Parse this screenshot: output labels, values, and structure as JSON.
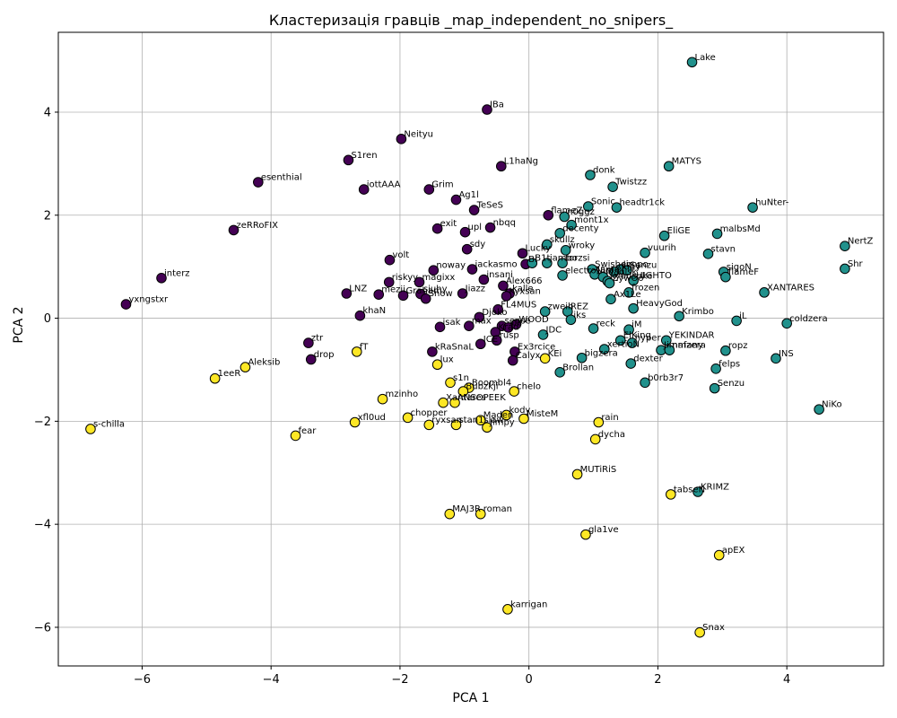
{
  "chart_data": {
    "type": "scatter",
    "title": "Кластеризація гравців _map_independent_no_snipers_",
    "xlabel": "PCA 1",
    "ylabel": "PCA 2",
    "xlim": [
      -7.3,
      5.5
    ],
    "ylim": [
      -6.75,
      5.55
    ],
    "xticks": [
      -6,
      -4,
      -2,
      0,
      2,
      4
    ],
    "yticks": [
      -6,
      -4,
      -2,
      0,
      2,
      4
    ],
    "grid": true,
    "cluster_colors": [
      "#440154",
      "#21918c",
      "#fde725"
    ],
    "points": [
      {
        "label": "IBa",
        "x": -0.65,
        "y": 4.05,
        "cluster": 0
      },
      {
        "label": "Neityu",
        "x": -1.98,
        "y": 3.48,
        "cluster": 0
      },
      {
        "label": "S1ren",
        "x": -2.8,
        "y": 3.07,
        "cluster": 0
      },
      {
        "label": "L1haNg",
        "x": -0.43,
        "y": 2.95,
        "cluster": 0
      },
      {
        "label": "esenthial",
        "x": -4.2,
        "y": 2.64,
        "cluster": 0
      },
      {
        "label": "iottAAA",
        "x": -2.56,
        "y": 2.5,
        "cluster": 0
      },
      {
        "label": "Grim",
        "x": -1.55,
        "y": 2.5,
        "cluster": 0
      },
      {
        "label": "Ag1l",
        "x": -1.13,
        "y": 2.3,
        "cluster": 0
      },
      {
        "label": "TeSeS",
        "x": -0.85,
        "y": 2.1,
        "cluster": 0
      },
      {
        "label": "flameZ",
        "x": 0.3,
        "y": 2.0,
        "cluster": 0
      },
      {
        "label": "zeRRoFIX",
        "x": -4.58,
        "y": 1.71,
        "cluster": 0
      },
      {
        "label": "exit",
        "x": -1.42,
        "y": 1.74,
        "cluster": 0
      },
      {
        "label": "upl",
        "x": -0.99,
        "y": 1.67,
        "cluster": 0
      },
      {
        "label": "nbqq",
        "x": -0.6,
        "y": 1.76,
        "cluster": 0
      },
      {
        "label": "sdy",
        "x": -0.96,
        "y": 1.34,
        "cluster": 0
      },
      {
        "label": "Lucky",
        "x": -0.1,
        "y": 1.26,
        "cluster": 0
      },
      {
        "label": "volt",
        "x": -2.16,
        "y": 1.13,
        "cluster": 0
      },
      {
        "label": "interz",
        "x": -5.7,
        "y": 0.78,
        "cluster": 0
      },
      {
        "label": "noway",
        "x": -1.48,
        "y": 0.93,
        "cluster": 0
      },
      {
        "label": "jackasmo",
        "x": -0.88,
        "y": 0.95,
        "cluster": 0
      },
      {
        "label": "Bi",
        "x": -0.05,
        "y": 1.05,
        "cluster": 0
      },
      {
        "label": "riskyy",
        "x": -2.17,
        "y": 0.7,
        "cluster": 0
      },
      {
        "label": "magixx",
        "x": -1.7,
        "y": 0.7,
        "cluster": 0
      },
      {
        "label": "insani",
        "x": -0.7,
        "y": 0.75,
        "cluster": 0
      },
      {
        "label": "Alex666",
        "x": -0.4,
        "y": 0.63,
        "cluster": 0
      },
      {
        "label": "LNZ",
        "x": -2.83,
        "y": 0.48,
        "cluster": 0
      },
      {
        "label": "mezii",
        "x": -2.33,
        "y": 0.46,
        "cluster": 0
      },
      {
        "label": "Graham",
        "x": -1.95,
        "y": 0.44,
        "cluster": 0
      },
      {
        "label": "siuhy",
        "x": -1.68,
        "y": 0.47,
        "cluster": 0
      },
      {
        "label": "Snow",
        "x": -1.6,
        "y": 0.38,
        "cluster": 0
      },
      {
        "label": "Jiazz",
        "x": -1.03,
        "y": 0.48,
        "cluster": 0
      },
      {
        "label": "kalle",
        "x": -0.3,
        "y": 0.48,
        "cluster": 0
      },
      {
        "label": "Kyxsan",
        "x": -0.35,
        "y": 0.43,
        "cluster": 0
      },
      {
        "label": "yxngstxr",
        "x": -6.25,
        "y": 0.27,
        "cluster": 0
      },
      {
        "label": "FL4MUS",
        "x": -0.48,
        "y": 0.17,
        "cluster": 0
      },
      {
        "label": "khaN",
        "x": -2.62,
        "y": 0.05,
        "cluster": 0
      },
      {
        "label": "Djoko",
        "x": -0.77,
        "y": 0.02,
        "cluster": 0
      },
      {
        "label": "isak",
        "x": -1.38,
        "y": -0.17,
        "cluster": 0
      },
      {
        "label": "max",
        "x": -0.93,
        "y": -0.15,
        "cluster": 0
      },
      {
        "label": "sense",
        "x": -0.42,
        "y": -0.15,
        "cluster": 0
      },
      {
        "label": "pe",
        "x": -0.32,
        "y": -0.18,
        "cluster": 0
      },
      {
        "label": "WOOD",
        "x": -0.2,
        "y": -0.12,
        "cluster": 0
      },
      {
        "label": "Krad",
        "x": -0.52,
        "y": -0.27,
        "cluster": 0
      },
      {
        "label": "rusp",
        "x": -0.5,
        "y": -0.43,
        "cluster": 0
      },
      {
        "label": "ztr",
        "x": -3.42,
        "y": -0.48,
        "cluster": 0
      },
      {
        "label": "ICE",
        "x": -0.75,
        "y": -0.5,
        "cluster": 0
      },
      {
        "label": "kRaSnaL",
        "x": -1.5,
        "y": -0.65,
        "cluster": 0
      },
      {
        "label": "Ex3rcice",
        "x": -0.22,
        "y": -0.65,
        "cluster": 0
      },
      {
        "label": "drop",
        "x": -3.38,
        "y": -0.8,
        "cluster": 0
      },
      {
        "label": "Calyx",
        "x": -0.25,
        "y": -0.82,
        "cluster": 0
      },
      {
        "label": "Lake",
        "x": 2.53,
        "y": 4.97,
        "cluster": 1
      },
      {
        "label": "MATYS",
        "x": 2.17,
        "y": 2.95,
        "cluster": 1
      },
      {
        "label": "donk",
        "x": 0.95,
        "y": 2.78,
        "cluster": 1
      },
      {
        "label": "Twistzz",
        "x": 1.3,
        "y": 2.55,
        "cluster": 1
      },
      {
        "label": "Sonic",
        "x": 0.92,
        "y": 2.17,
        "cluster": 1
      },
      {
        "label": "headtr1ck",
        "x": 1.36,
        "y": 2.15,
        "cluster": 1
      },
      {
        "label": "huNter-",
        "x": 3.47,
        "y": 2.15,
        "cluster": 1
      },
      {
        "label": "n0ggz",
        "x": 0.55,
        "y": 1.97,
        "cluster": 1
      },
      {
        "label": "mont1x",
        "x": 0.66,
        "y": 1.81,
        "cluster": 1
      },
      {
        "label": "decenty",
        "x": 0.48,
        "y": 1.65,
        "cluster": 1
      },
      {
        "label": "EliGE",
        "x": 2.1,
        "y": 1.6,
        "cluster": 1
      },
      {
        "label": "malbsMd",
        "x": 2.92,
        "y": 1.64,
        "cluster": 1
      },
      {
        "label": "NertZ",
        "x": 4.9,
        "y": 1.4,
        "cluster": 1
      },
      {
        "label": "skullz",
        "x": 0.28,
        "y": 1.43,
        "cluster": 1
      },
      {
        "label": "wroky",
        "x": 0.57,
        "y": 1.32,
        "cluster": 1
      },
      {
        "label": "vuurih",
        "x": 1.8,
        "y": 1.27,
        "cluster": 1
      },
      {
        "label": "stavn",
        "x": 2.78,
        "y": 1.25,
        "cluster": 1
      },
      {
        "label": "B1t",
        "x": 0.05,
        "y": 1.07,
        "cluster": 1
      },
      {
        "label": "jambo",
        "x": 0.28,
        "y": 1.07,
        "cluster": 1
      },
      {
        "label": "torzsi",
        "x": 0.52,
        "y": 1.07,
        "cluster": 1
      },
      {
        "label": "Shr",
        "x": 4.9,
        "y": 0.96,
        "cluster": 1
      },
      {
        "label": "Swisher",
        "x": 0.98,
        "y": 0.95,
        "cluster": 1
      },
      {
        "label": "Jimpo",
        "x": 1.42,
        "y": 0.95,
        "cluster": 1
      },
      {
        "label": "Senzu",
        "x": 1.52,
        "y": 0.93,
        "cluster": 1
      },
      {
        "label": "siuhy",
        "x": 1.32,
        "y": 0.9,
        "cluster": 1
      },
      {
        "label": "sigoN",
        "x": 3.02,
        "y": 0.9,
        "cluster": 1
      },
      {
        "label": "electroNic",
        "x": 0.52,
        "y": 0.83,
        "cluster": 1
      },
      {
        "label": "Jame",
        "x": 1.02,
        "y": 0.85,
        "cluster": 1
      },
      {
        "label": "Magisk",
        "x": 1.15,
        "y": 0.8,
        "cluster": 1
      },
      {
        "label": "flameF",
        "x": 3.05,
        "y": 0.8,
        "cluster": 1
      },
      {
        "label": "kyousuke",
        "x": 1.22,
        "y": 0.72,
        "cluster": 1
      },
      {
        "label": "HIGHTO",
        "x": 1.62,
        "y": 0.73,
        "cluster": 1
      },
      {
        "label": "ZywOo",
        "x": 1.25,
        "y": 0.68,
        "cluster": 1
      },
      {
        "label": "frozen",
        "x": 1.55,
        "y": 0.5,
        "cluster": 1
      },
      {
        "label": "XANTARES",
        "x": 3.65,
        "y": 0.5,
        "cluster": 1
      },
      {
        "label": "Ax1Le",
        "x": 1.27,
        "y": 0.37,
        "cluster": 1
      },
      {
        "label": "HeavyGod",
        "x": 1.62,
        "y": 0.19,
        "cluster": 1
      },
      {
        "label": "zweih",
        "x": 0.25,
        "y": 0.13,
        "cluster": 1
      },
      {
        "label": "REZ",
        "x": 0.6,
        "y": 0.13,
        "cluster": 1
      },
      {
        "label": "Krimbo",
        "x": 2.33,
        "y": 0.04,
        "cluster": 1
      },
      {
        "label": "iks",
        "x": 0.65,
        "y": -0.03,
        "cluster": 1
      },
      {
        "label": "iL",
        "x": 3.22,
        "y": -0.05,
        "cluster": 1
      },
      {
        "label": "coldzera",
        "x": 4.0,
        "y": -0.1,
        "cluster": 1
      },
      {
        "label": "reck",
        "x": 1.0,
        "y": -0.2,
        "cluster": 1
      },
      {
        "label": "iM",
        "x": 1.55,
        "y": -0.22,
        "cluster": 1
      },
      {
        "label": "JDC",
        "x": 0.22,
        "y": -0.32,
        "cluster": 1
      },
      {
        "label": "ElKing",
        "x": 1.42,
        "y": -0.43,
        "cluster": 1
      },
      {
        "label": "hyper",
        "x": 1.6,
        "y": -0.48,
        "cluster": 1
      },
      {
        "label": "YEKINDAR",
        "x": 2.13,
        "y": -0.43,
        "cluster": 1
      },
      {
        "label": "xertioN",
        "x": 1.17,
        "y": -0.6,
        "cluster": 1
      },
      {
        "label": "Jimmzera",
        "x": 2.05,
        "y": -0.62,
        "cluster": 1
      },
      {
        "label": "nafany",
        "x": 2.18,
        "y": -0.62,
        "cluster": 1
      },
      {
        "label": "ropz",
        "x": 3.05,
        "y": -0.63,
        "cluster": 1
      },
      {
        "label": "bigzera",
        "x": 0.82,
        "y": -0.77,
        "cluster": 1
      },
      {
        "label": "INS",
        "x": 3.83,
        "y": -0.78,
        "cluster": 1
      },
      {
        "label": "dexter",
        "x": 1.58,
        "y": -0.88,
        "cluster": 1
      },
      {
        "label": "felps",
        "x": 2.9,
        "y": -0.98,
        "cluster": 1
      },
      {
        "label": "Brollan",
        "x": 0.48,
        "y": -1.05,
        "cluster": 1
      },
      {
        "label": "b0rb3r7",
        "x": 1.8,
        "y": -1.25,
        "cluster": 1
      },
      {
        "label": "Senzu",
        "x": 2.88,
        "y": -1.36,
        "cluster": 1
      },
      {
        "label": "NiKo",
        "x": 4.5,
        "y": -1.77,
        "cluster": 1
      },
      {
        "label": "KRIMZ",
        "x": 2.62,
        "y": -3.37,
        "cluster": 1
      },
      {
        "label": "fT",
        "x": -2.67,
        "y": -0.65,
        "cluster": 2
      },
      {
        "label": "Aleksib",
        "x": -4.4,
        "y": -0.95,
        "cluster": 2
      },
      {
        "label": "1eeR",
        "x": -4.87,
        "y": -1.17,
        "cluster": 2
      },
      {
        "label": "lux",
        "x": -1.42,
        "y": -0.9,
        "cluster": 2
      },
      {
        "label": "KEi",
        "x": 0.25,
        "y": -0.78,
        "cluster": 2
      },
      {
        "label": "s1n",
        "x": -1.22,
        "y": -1.25,
        "cluster": 2
      },
      {
        "label": "Boombl4",
        "x": -0.93,
        "y": -1.35,
        "cluster": 2
      },
      {
        "label": "Bubzkji",
        "x": -1.02,
        "y": -1.42,
        "cluster": 2
      },
      {
        "label": "chelo",
        "x": -0.23,
        "y": -1.42,
        "cluster": 2
      },
      {
        "label": "mzinho",
        "x": -2.27,
        "y": -1.57,
        "cluster": 2
      },
      {
        "label": "Xantares",
        "x": -1.33,
        "y": -1.64,
        "cluster": 2
      },
      {
        "label": "ANSOPEEK",
        "x": -1.15,
        "y": -1.64,
        "cluster": 2
      },
      {
        "label": "kody",
        "x": -0.35,
        "y": -1.88,
        "cluster": 2
      },
      {
        "label": "MisteM",
        "x": -0.08,
        "y": -1.95,
        "cluster": 2
      },
      {
        "label": "chopper",
        "x": -1.88,
        "y": -1.93,
        "cluster": 2
      },
      {
        "label": "Maden",
        "x": -0.75,
        "y": -1.98,
        "cluster": 2
      },
      {
        "label": "xfl0ud",
        "x": -2.7,
        "y": -2.02,
        "cluster": 2
      },
      {
        "label": "ryxsan",
        "x": -1.55,
        "y": -2.07,
        "cluster": 2
      },
      {
        "label": "stan1slaw",
        "x": -1.13,
        "y": -2.07,
        "cluster": 2
      },
      {
        "label": "Jimpy",
        "x": -0.65,
        "y": -2.12,
        "cluster": 2
      },
      {
        "label": "rain",
        "x": 1.08,
        "y": -2.02,
        "cluster": 2
      },
      {
        "label": "s-chilla",
        "x": -6.8,
        "y": -2.15,
        "cluster": 2
      },
      {
        "label": "fear",
        "x": -3.62,
        "y": -2.28,
        "cluster": 2
      },
      {
        "label": "dycha",
        "x": 1.03,
        "y": -2.35,
        "cluster": 2
      },
      {
        "label": "MUTiRiS",
        "x": 0.75,
        "y": -3.03,
        "cluster": 2
      },
      {
        "label": "tabseN",
        "x": 2.2,
        "y": -3.42,
        "cluster": 2
      },
      {
        "label": "MAJ3R",
        "x": -1.23,
        "y": -3.8,
        "cluster": 2
      },
      {
        "label": "roman",
        "x": -0.75,
        "y": -3.8,
        "cluster": 2
      },
      {
        "label": "gla1ve",
        "x": 0.88,
        "y": -4.2,
        "cluster": 2
      },
      {
        "label": "apEX",
        "x": 2.95,
        "y": -4.6,
        "cluster": 2
      },
      {
        "label": "karrigan",
        "x": -0.33,
        "y": -5.65,
        "cluster": 2
      },
      {
        "label": "Snax",
        "x": 2.65,
        "y": -6.1,
        "cluster": 2
      }
    ]
  }
}
